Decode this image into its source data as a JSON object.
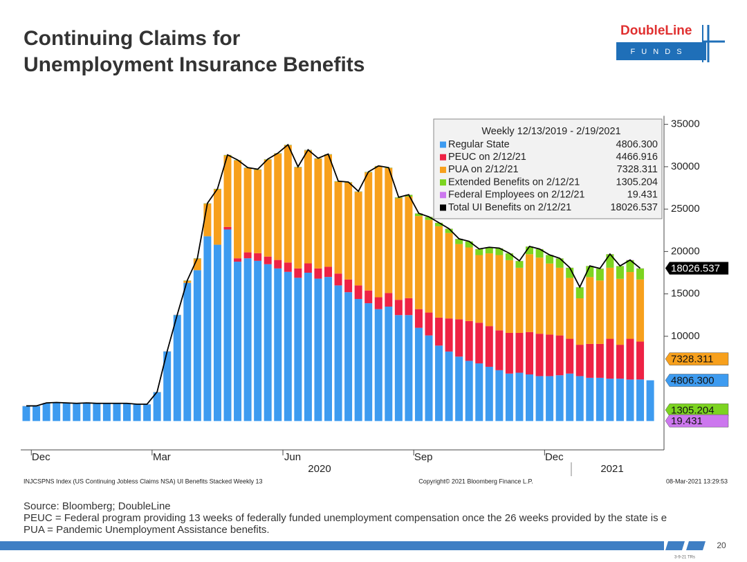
{
  "title_lines": [
    "Continuing Claims for",
    "Unemployment Insurance Benefits"
  ],
  "logo": {
    "name": "DoubleLine",
    "sub": "F U N D S"
  },
  "chart_data": {
    "type": "bar",
    "stacked": true,
    "legend_title": "Weekly 12/13/2019 - 2/19/2021",
    "legend": "upper right",
    "categories": [
      null,
      "Dec",
      null,
      null,
      null,
      null,
      null,
      null,
      null,
      null,
      null,
      null,
      null,
      "Mar",
      null,
      null,
      null,
      null,
      null,
      null,
      null,
      null,
      null,
      null,
      null,
      null,
      "Jun",
      null,
      null,
      null,
      null,
      null,
      null,
      null,
      null,
      null,
      null,
      null,
      null,
      "Sep",
      null,
      null,
      null,
      null,
      null,
      null,
      null,
      null,
      null,
      null,
      null,
      null,
      "Dec",
      null,
      null,
      null,
      null,
      null,
      null,
      null,
      null,
      null,
      null
    ],
    "years": [
      "2020",
      "2021"
    ],
    "ylim": [
      -3400,
      36000
    ],
    "yticks": [
      10000,
      15000,
      20000,
      25000,
      30000,
      35000
    ],
    "series": [
      {
        "name": "Regular State",
        "color": "#3d9bf0",
        "legend_value": "4806.300",
        "flag": true,
        "values": [
          1750,
          1750,
          2100,
          2150,
          2100,
          2050,
          2100,
          2050,
          2050,
          2050,
          2050,
          1950,
          1950,
          3400,
          8200,
          12500,
          16300,
          17800,
          21800,
          20800,
          22600,
          18800,
          19200,
          18900,
          18500,
          18000,
          17600,
          16900,
          17500,
          16800,
          17000,
          16000,
          15200,
          14400,
          13900,
          13200,
          13500,
          12500,
          12500,
          11000,
          10100,
          8900,
          8200,
          7600,
          7100,
          6800,
          6400,
          6000,
          5600,
          5700,
          5500,
          5300,
          5300,
          5400,
          5600,
          5300,
          5100,
          5100,
          5000,
          5000,
          4900,
          4906.675,
          4806.3
        ]
      },
      {
        "name": "PEUC on 2/12/21",
        "color": "#ee2244",
        "legend_value": "4466.916",
        "flag": false,
        "values": [
          null,
          null,
          null,
          null,
          null,
          null,
          null,
          null,
          null,
          null,
          null,
          null,
          null,
          null,
          null,
          null,
          null,
          null,
          null,
          null,
          300,
          400,
          700,
          900,
          900,
          1000,
          1100,
          1100,
          1100,
          1200,
          1200,
          1400,
          1500,
          1600,
          1500,
          1400,
          1600,
          1800,
          2000,
          2200,
          2700,
          3300,
          3900,
          4400,
          4700,
          4800,
          4800,
          4700,
          4800,
          4700,
          5000,
          5000,
          4900,
          4700,
          4100,
          3700,
          4000,
          4000,
          4700,
          4000,
          4800,
          4466.916,
          null
        ]
      },
      {
        "name": "PUA on 2/12/21",
        "color": "#f7a01c",
        "legend_value": "7328.311",
        "flag": true,
        "values": [
          null,
          null,
          null,
          null,
          null,
          null,
          null,
          null,
          null,
          null,
          null,
          null,
          null,
          null,
          null,
          null,
          230,
          1330,
          3830,
          6530,
          8430,
          11530,
          9930,
          9830,
          11430,
          12530,
          13830,
          11930,
          13330,
          12930,
          13230,
          10830,
          11430,
          11030,
          13930,
          15430,
          14730,
          11980,
          11980,
          10980,
          10930,
          10780,
          10080,
          8880,
          8680,
          7980,
          8580,
          8880,
          8580,
          7680,
          9180,
          8980,
          8380,
          7980,
          7180,
          5480,
          7880,
          7480,
          8380,
          7780,
          7880,
          7328.311,
          null
        ]
      },
      {
        "name": "Extended Benefits on 2/12/21",
        "color": "#7cd420",
        "legend_value": "1305.204",
        "flag": true,
        "values": [
          20,
          20,
          20,
          20,
          20,
          20,
          20,
          20,
          20,
          20,
          20,
          20,
          20,
          20,
          20,
          20,
          50,
          50,
          50,
          50,
          50,
          50,
          50,
          50,
          50,
          50,
          50,
          50,
          50,
          50,
          50,
          50,
          50,
          50,
          50,
          50,
          50,
          100,
          200,
          300,
          350,
          400,
          500,
          600,
          700,
          700,
          700,
          800,
          800,
          800,
          900,
          1000,
          1000,
          1100,
          1200,
          1300,
          1300,
          1400,
          1600,
          1500,
          1400,
          1305.204,
          null
        ]
      },
      {
        "name": "Federal Employees on 2/12/21",
        "color": "#cc77ee",
        "legend_value": "19.431",
        "flag": true,
        "values": [
          20,
          20,
          20,
          20,
          20,
          20,
          20,
          20,
          20,
          20,
          20,
          20,
          20,
          20,
          20,
          20,
          20,
          20,
          20,
          20,
          20,
          20,
          20,
          20,
          20,
          20,
          20,
          20,
          20,
          20,
          20,
          20,
          20,
          20,
          20,
          20,
          20,
          20,
          20,
          20,
          20,
          20,
          20,
          20,
          20,
          20,
          20,
          20,
          20,
          20,
          20,
          20,
          20,
          20,
          20,
          20,
          20,
          20,
          20,
          20,
          20,
          19.431,
          null
        ]
      },
      {
        "name": "Total UI Benefits on 2/12/21",
        "type": "line",
        "color": "#000000",
        "legend_value": "18026.537",
        "flag": true,
        "values": [
          1790,
          1790,
          2140,
          2190,
          2140,
          2090,
          2140,
          2090,
          2090,
          2090,
          2090,
          1990,
          1990,
          3440,
          8240,
          12540,
          16600,
          19200,
          25700,
          27400,
          31400,
          30800,
          29900,
          29700,
          30900,
          31600,
          32600,
          30000,
          32000,
          31000,
          31500,
          28300,
          28200,
          27100,
          29400,
          30100,
          29900,
          26400,
          26700,
          24500,
          24100,
          23400,
          22700,
          21500,
          21200,
          20300,
          20500,
          20400,
          19800,
          18900,
          20600,
          20300,
          19600,
          19200,
          18100,
          15800,
          18300,
          18000,
          19700,
          18300,
          19000,
          18026.537,
          null
        ]
      }
    ],
    "footer": [
      "INJCSPNS Index (US Continuing Jobless Claims NSA) UI Benefits Stacked  Weekly 13",
      "Copyright© 2021 Bloomberg Finance L.P.",
      "08-Mar-2021 13:29:53"
    ]
  },
  "notes": [
    "Source: Bloomberg; DoubleLine",
    "PEUC = Federal program providing 13 weeks of federally funded unemployment compensation once the 26 weeks provided by the state is e",
    "PUA = Pandemic Unemployment Assistance benefits."
  ],
  "page_number": "20",
  "stamp": "3-9-21 TRs"
}
